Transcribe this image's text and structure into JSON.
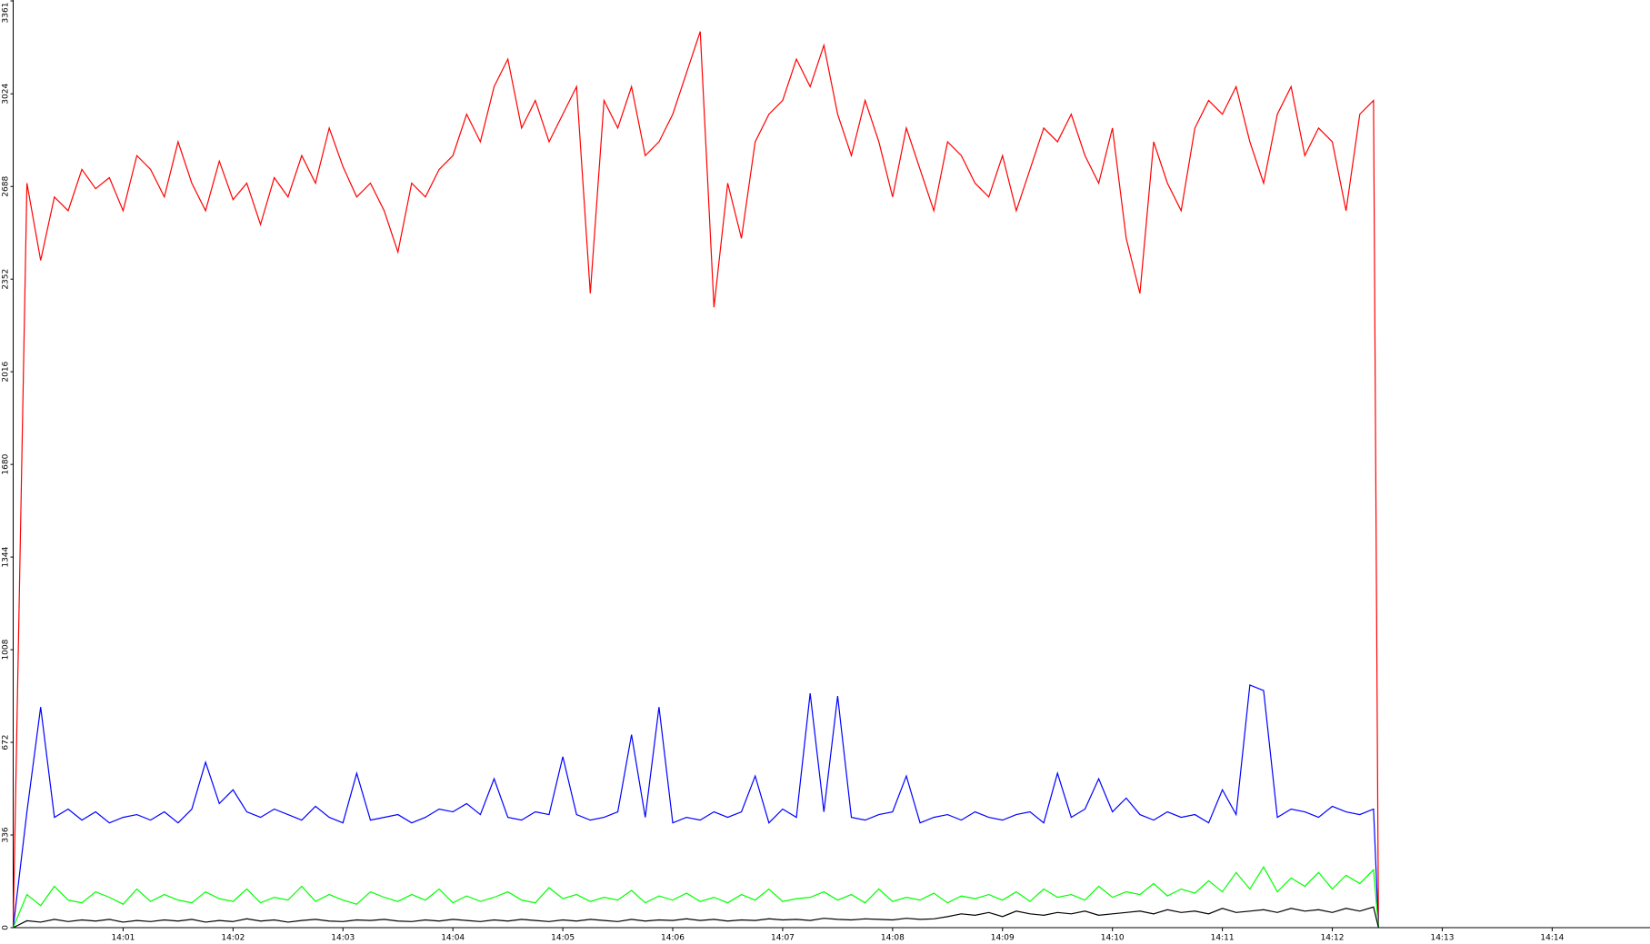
{
  "chart_data": {
    "type": "line",
    "x": [
      0,
      0.125,
      0.25,
      0.375,
      0.5,
      0.625,
      0.75,
      0.875,
      1,
      1.125,
      1.25,
      1.375,
      1.5,
      1.625,
      1.75,
      1.875,
      2,
      2.125,
      2.25,
      2.375,
      2.5,
      2.625,
      2.75,
      2.875,
      3,
      3.125,
      3.25,
      3.375,
      3.5,
      3.625,
      3.75,
      3.875,
      4,
      4.125,
      4.25,
      4.375,
      4.5,
      4.625,
      4.75,
      4.875,
      5,
      5.125,
      5.25,
      5.375,
      5.5,
      5.625,
      5.75,
      5.875,
      6,
      6.125,
      6.25,
      6.375,
      6.5,
      6.625,
      6.75,
      6.875,
      7,
      7.125,
      7.25,
      7.375,
      7.5,
      7.625,
      7.75,
      7.875,
      8,
      8.125,
      8.25,
      8.375,
      8.5,
      8.625,
      8.75,
      8.875,
      9,
      9.125,
      9.25,
      9.375,
      9.5,
      9.625,
      9.75,
      9.875,
      10,
      10.125,
      10.25,
      10.375,
      10.5,
      10.625,
      10.75,
      10.875,
      11,
      11.125,
      11.25,
      11.375,
      11.5,
      11.625,
      11.75,
      11.875,
      12,
      12.125,
      12.25,
      12.375,
      12.42
    ],
    "series": [
      {
        "color": "#ff0000",
        "values": [
          0,
          2700,
          2420,
          2650,
          2600,
          2750,
          2680,
          2720,
          2600,
          2800,
          2750,
          2650,
          2850,
          2700,
          2600,
          2780,
          2640,
          2700,
          2550,
          2720,
          2650,
          2800,
          2700,
          2900,
          2760,
          2650,
          2700,
          2600,
          2450,
          2700,
          2650,
          2750,
          2800,
          2950,
          2850,
          3050,
          3150,
          2900,
          3000,
          2850,
          2950,
          3050,
          2300,
          3000,
          2900,
          3050,
          2800,
          2850,
          2950,
          3100,
          3250,
          2250,
          2700,
          2500,
          2850,
          2950,
          3000,
          3150,
          3050,
          3200,
          2950,
          2800,
          3000,
          2850,
          2650,
          2900,
          2750,
          2600,
          2850,
          2800,
          2700,
          2650,
          2800,
          2600,
          2750,
          2900,
          2850,
          2950,
          2800,
          2700,
          2900,
          2500,
          2300,
          2850,
          2700,
          2600,
          2900,
          3000,
          2950,
          3050,
          2850,
          2700,
          2950,
          3050,
          2800,
          2900,
          2850,
          2600,
          2950,
          3000,
          0
        ]
      },
      {
        "color": "#0000ff",
        "values": [
          0,
          420,
          800,
          400,
          430,
          390,
          420,
          380,
          400,
          410,
          390,
          420,
          380,
          430,
          600,
          450,
          500,
          420,
          400,
          430,
          410,
          390,
          440,
          400,
          380,
          560,
          390,
          400,
          410,
          380,
          400,
          430,
          420,
          450,
          410,
          540,
          400,
          390,
          420,
          410,
          620,
          410,
          390,
          400,
          420,
          700,
          400,
          800,
          380,
          400,
          390,
          420,
          400,
          420,
          550,
          380,
          430,
          400,
          850,
          420,
          840,
          400,
          390,
          410,
          420,
          550,
          380,
          400,
          410,
          390,
          420,
          400,
          390,
          410,
          420,
          380,
          560,
          400,
          430,
          540,
          420,
          470,
          410,
          390,
          420,
          400,
          410,
          380,
          500,
          410,
          880,
          860,
          400,
          430,
          420,
          400,
          440,
          420,
          410,
          430,
          0
        ]
      },
      {
        "color": "#00ff00",
        "values": [
          0,
          120,
          80,
          150,
          100,
          90,
          130,
          110,
          85,
          140,
          95,
          120,
          100,
          90,
          130,
          105,
          95,
          140,
          90,
          110,
          100,
          150,
          95,
          120,
          100,
          85,
          130,
          110,
          95,
          120,
          100,
          140,
          90,
          115,
          95,
          110,
          130,
          100,
          90,
          145,
          105,
          120,
          95,
          110,
          100,
          135,
          90,
          115,
          100,
          125,
          95,
          110,
          90,
          120,
          100,
          140,
          95,
          105,
          110,
          130,
          100,
          120,
          90,
          140,
          95,
          110,
          100,
          125,
          90,
          115,
          105,
          120,
          100,
          130,
          95,
          140,
          110,
          120,
          100,
          150,
          110,
          130,
          120,
          160,
          115,
          140,
          125,
          170,
          130,
          200,
          140,
          220,
          130,
          180,
          150,
          200,
          140,
          190,
          160,
          210,
          0
        ]
      },
      {
        "color": "#000000",
        "values": [
          0,
          25,
          20,
          30,
          22,
          28,
          24,
          30,
          20,
          26,
          22,
          28,
          24,
          30,
          20,
          26,
          22,
          32,
          24,
          28,
          20,
          26,
          30,
          24,
          22,
          28,
          26,
          30,
          24,
          22,
          28,
          24,
          30,
          26,
          22,
          28,
          24,
          30,
          26,
          22,
          28,
          24,
          30,
          26,
          22,
          30,
          24,
          28,
          26,
          32,
          26,
          30,
          24,
          28,
          26,
          32,
          28,
          30,
          26,
          34,
          30,
          28,
          32,
          30,
          28,
          34,
          30,
          32,
          40,
          50,
          45,
          55,
          40,
          60,
          50,
          45,
          55,
          50,
          60,
          45,
          50,
          55,
          60,
          50,
          65,
          55,
          60,
          50,
          70,
          55,
          60,
          65,
          55,
          70,
          60,
          65,
          55,
          70,
          60,
          75,
          0
        ]
      }
    ],
    "xlim": [
      0,
      14.89
    ],
    "xticks": [
      {
        "value": 1,
        "label": "14:01"
      },
      {
        "value": 2,
        "label": "14:02"
      },
      {
        "value": 3,
        "label": "14:03"
      },
      {
        "value": 4,
        "label": "14:04"
      },
      {
        "value": 5,
        "label": "14:05"
      },
      {
        "value": 6,
        "label": "14:06"
      },
      {
        "value": 7,
        "label": "14:07"
      },
      {
        "value": 8,
        "label": "14:08"
      },
      {
        "value": 9,
        "label": "14:09"
      },
      {
        "value": 10,
        "label": "14:10"
      },
      {
        "value": 11,
        "label": "14:11"
      },
      {
        "value": 12,
        "label": "14:12"
      },
      {
        "value": 13,
        "label": "14:13"
      },
      {
        "value": 14,
        "label": "14:14"
      }
    ],
    "ylim": [
      0,
      3361
    ],
    "yticks": [
      0,
      336,
      672,
      1008,
      1344,
      1680,
      2016,
      2352,
      2688,
      3024,
      3361
    ],
    "grid": false
  }
}
